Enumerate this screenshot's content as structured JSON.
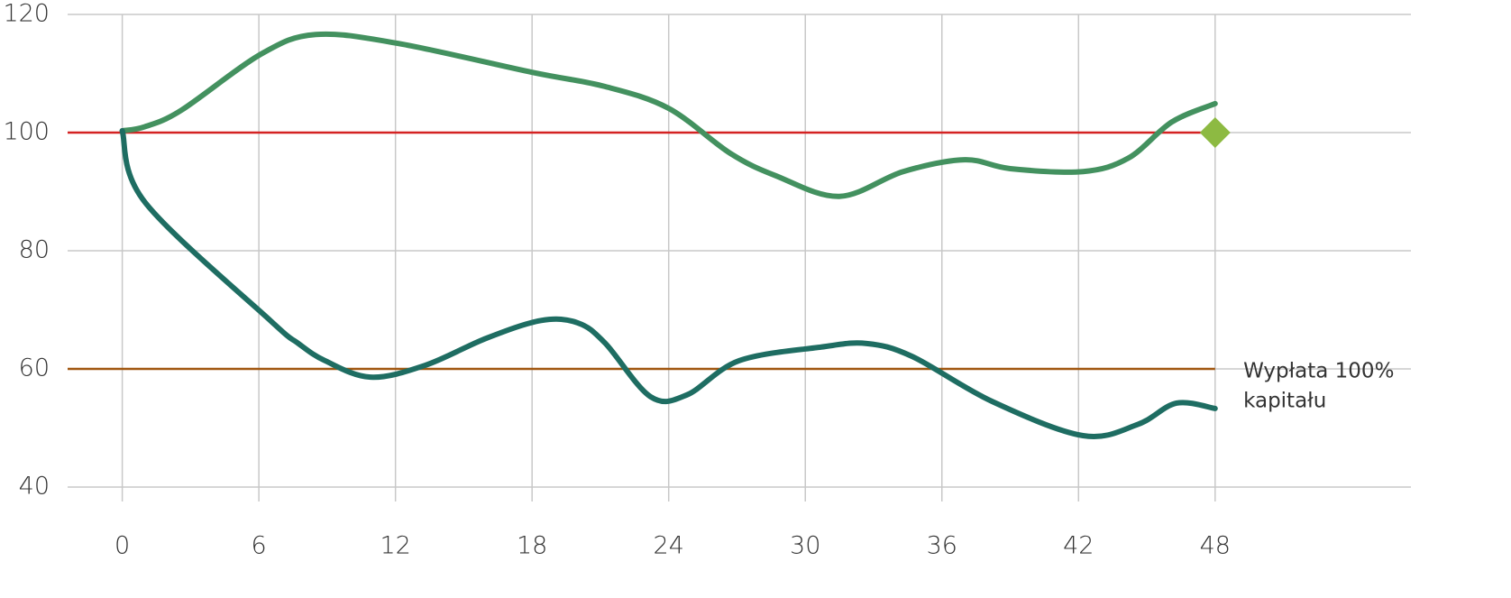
{
  "chart_data": {
    "type": "line",
    "xlim": [
      -2.4,
      56.6
    ],
    "ylim": [
      40,
      120
    ],
    "xticks": [
      0,
      6,
      12,
      18,
      24,
      30,
      36,
      42,
      48
    ],
    "yticks": [
      40,
      60,
      80,
      100,
      120
    ],
    "grid": true,
    "series": [
      {
        "color": "#43915f",
        "x": [
          0,
          1,
          2.6,
          6.1,
          8.5,
          12.1,
          18,
          21.2,
          24,
          26.7,
          28.7,
          31.5,
          34.3,
          37,
          39,
          42.2,
          44.2,
          46.1,
          48
        ],
        "values": [
          100.3,
          101,
          103.8,
          113.3,
          116.6,
          115.1,
          110.2,
          107.8,
          104.1,
          96.5,
          92.7,
          89.2,
          93.4,
          95.4,
          93.9,
          93.4,
          95.7,
          101.8,
          104.9
        ]
      },
      {
        "color": "#1e6d62",
        "x": [
          0,
          1,
          6.5,
          7.7,
          8.9,
          10.9,
          13.3,
          16,
          18.4,
          20,
          21.2,
          23.2,
          24.8,
          27.1,
          30.7,
          32.7,
          34.7,
          38.2,
          42.2,
          44.6,
          46.3,
          48
        ],
        "values": [
          100.3,
          88.2,
          68.2,
          64.4,
          61.4,
          58.6,
          60.6,
          65.2,
          68.2,
          67.8,
          64.4,
          55.3,
          55.6,
          61.4,
          63.7,
          64.3,
          62.1,
          54.5,
          48.7,
          50.6,
          54.2,
          53.3
        ]
      }
    ],
    "reference_lines": [
      {
        "value": 100,
        "color": "#d42222",
        "x_end": 48
      },
      {
        "value": 60,
        "color": "#a0560f",
        "x_end": 48
      }
    ],
    "markers": [
      {
        "x": 48,
        "y": 100,
        "color": "#8dba42"
      }
    ],
    "annotation": {
      "x": 49,
      "y": 60,
      "lines": [
        "Wypłata 100%",
        "kapitału"
      ]
    }
  }
}
